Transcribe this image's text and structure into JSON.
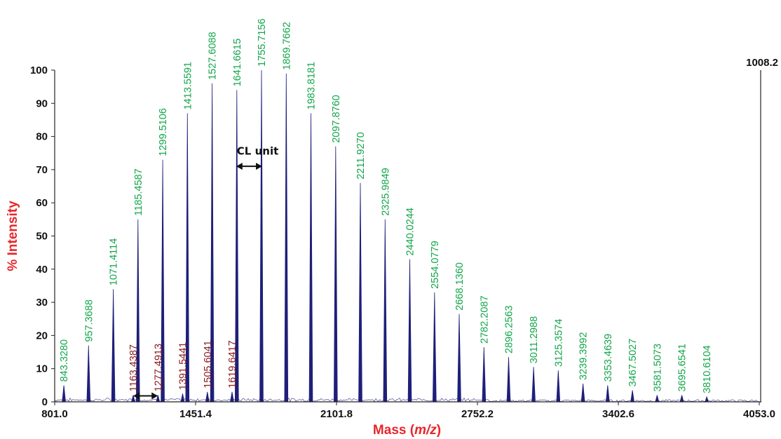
{
  "chart_data": {
    "type": "bar",
    "xlabel_prefix": "Mass (",
    "xlabel_var": "m/z",
    "xlabel_suffix": ")",
    "ylabel": "% Intensity",
    "xlim": [
      801.0,
      4053.0
    ],
    "ylim": [
      0,
      100
    ],
    "x_ticks": [
      "801.0",
      "1451.4",
      "2101.8",
      "2752.2",
      "3402.6",
      "4053.0"
    ],
    "y_ticks": [
      "0",
      "10",
      "20",
      "30",
      "40",
      "50",
      "60",
      "70",
      "80",
      "90",
      "100"
    ],
    "max_intensity_label": "1008.2",
    "annotation": "CL unit",
    "colors": {
      "line": "#1f1f7a",
      "major_label": "#12a54a",
      "minor_label": "#8b1a1a",
      "axis_title_y": "#e8262a",
      "axis_title_x": "#e8262a"
    },
    "major_peaks": [
      {
        "x": 843.328,
        "y": 5,
        "label": "843.3280"
      },
      {
        "x": 957.3688,
        "y": 17,
        "label": "957.3688"
      },
      {
        "x": 1071.4114,
        "y": 34,
        "label": "1071.4114"
      },
      {
        "x": 1185.4587,
        "y": 55,
        "label": "1185.4587"
      },
      {
        "x": 1299.5106,
        "y": 73,
        "label": "1299.5106"
      },
      {
        "x": 1413.5591,
        "y": 87,
        "label": "1413.5591"
      },
      {
        "x": 1527.6088,
        "y": 96,
        "label": "1527.6088"
      },
      {
        "x": 1641.6615,
        "y": 94,
        "label": "1641.6615"
      },
      {
        "x": 1755.7156,
        "y": 100,
        "label": "1755.7156"
      },
      {
        "x": 1869.7662,
        "y": 99,
        "label": "1869.7662"
      },
      {
        "x": 1983.8181,
        "y": 87,
        "label": "1983.8181"
      },
      {
        "x": 2097.876,
        "y": 77,
        "label": "2097.8760"
      },
      {
        "x": 2211.927,
        "y": 66,
        "label": "2211.9270"
      },
      {
        "x": 2325.9849,
        "y": 55,
        "label": "2325.9849"
      },
      {
        "x": 2440.0244,
        "y": 43,
        "label": "2440.0244"
      },
      {
        "x": 2554.0779,
        "y": 33,
        "label": "2554.0779"
      },
      {
        "x": 2668.136,
        "y": 26.5,
        "label": "2668.1360"
      },
      {
        "x": 2782.2087,
        "y": 16.5,
        "label": "2782.2087"
      },
      {
        "x": 2896.2563,
        "y": 13.5,
        "label": "2896.2563"
      },
      {
        "x": 3011.2988,
        "y": 10.5,
        "label": "3011.2988"
      },
      {
        "x": 3125.3574,
        "y": 9.5,
        "label": "3125.3574"
      },
      {
        "x": 3239.3992,
        "y": 5.5,
        "label": "3239.3992"
      },
      {
        "x": 3353.4639,
        "y": 5,
        "label": "3353.4639"
      },
      {
        "x": 3467.5027,
        "y": 3.5,
        "label": "3467.5027"
      },
      {
        "x": 3581.5073,
        "y": 2,
        "label": "3581.5073"
      },
      {
        "x": 3695.6541,
        "y": 2,
        "label": "3695.6541"
      },
      {
        "x": 3810.6104,
        "y": 1.5,
        "label": "3810.6104"
      }
    ],
    "minor_peaks": [
      {
        "x": 1163.4387,
        "y": 2,
        "label": "1163.4387"
      },
      {
        "x": 1277.4913,
        "y": 2,
        "label": "1277.4913"
      },
      {
        "x": 1391.5441,
        "y": 2.5,
        "label": "1391.5441"
      },
      {
        "x": 1505.6041,
        "y": 3,
        "label": "1505.6041"
      },
      {
        "x": 1619.6417,
        "y": 3,
        "label": "1619.6417"
      }
    ]
  }
}
